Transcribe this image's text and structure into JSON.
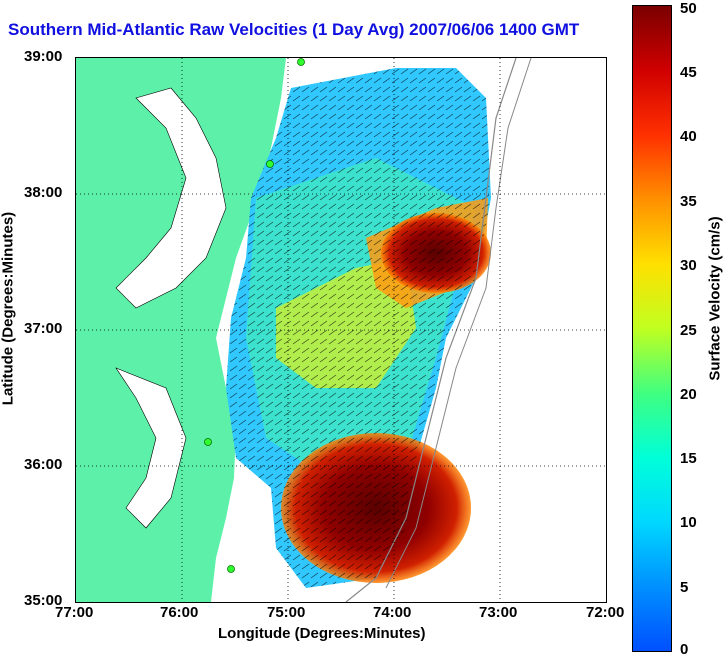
{
  "title": "Southern Mid-Atlantic Raw Velocities (1 Day Avg) 2007/06/06 1400 GMT",
  "xaxis": {
    "label": "Longitude (Degrees:Minutes)",
    "ticks": [
      "77:00",
      "76:00",
      "75:00",
      "74:00",
      "73:00",
      "72:00"
    ]
  },
  "yaxis": {
    "label": "Latitude (Degrees:Minutes)",
    "ticks": [
      "39:00",
      "38:00",
      "37:00",
      "36:00",
      "35:00"
    ]
  },
  "colorbar": {
    "label": "Surface Velocity (cm/s)",
    "ticks": [
      "50",
      "45",
      "40",
      "35",
      "30",
      "25",
      "20",
      "15",
      "10",
      "5",
      "0"
    ],
    "range": [
      0,
      50
    ]
  },
  "colors": {
    "land": "#5cf0a8",
    "title": "#1010e0"
  }
}
